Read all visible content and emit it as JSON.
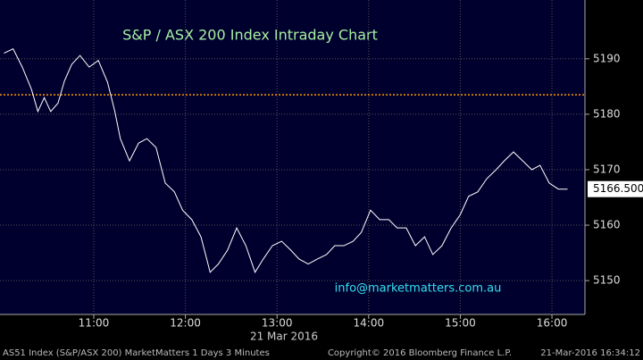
{
  "chart_data": {
    "type": "line",
    "title": "S&P / ASX 200 Index Intraday Chart",
    "annotation": "info@marketmatters.com.au",
    "x_label": "21 Mar 2016",
    "footer": {
      "left": "AS51 Index (S&P/ASX 200) MarketMatters 1 Days 3 Minutes",
      "center": "Copyright© 2016 Bloomberg Finance L.P.",
      "right": "21-Mar-2016 16:34:12"
    },
    "x": [
      10.02,
      10.12,
      10.22,
      10.32,
      10.39,
      10.46,
      10.53,
      10.61,
      10.68,
      10.76,
      10.85,
      10.95,
      11.05,
      11.15,
      11.23,
      11.29,
      11.39,
      11.49,
      11.58,
      11.68,
      11.78,
      11.88,
      11.97,
      12.07,
      12.17,
      12.27,
      12.36,
      12.46,
      12.56,
      12.66,
      12.76,
      12.85,
      12.95,
      13.05,
      13.15,
      13.24,
      13.34,
      13.44,
      13.54,
      13.63,
      13.73,
      13.83,
      13.92,
      14.02,
      14.12,
      14.22,
      14.31,
      14.41,
      14.51,
      14.61,
      14.7,
      14.8,
      14.9,
      15.0,
      15.09,
      15.19,
      15.29,
      15.39,
      15.48,
      15.58,
      15.68,
      15.78,
      15.87,
      15.97,
      16.07,
      16.17
    ],
    "series": [
      {
        "name": "AS51 Index",
        "color": "#ffffff",
        "values": [
          5191,
          5191.8,
          5188.5,
          5184.5,
          5180.5,
          5183,
          5180.5,
          5182,
          5186,
          5189,
          5190.6,
          5188.5,
          5189.7,
          5185.8,
          5180.5,
          5175.6,
          5171.6,
          5174.8,
          5175.6,
          5174,
          5167.6,
          5166,
          5162.7,
          5161,
          5157.9,
          5151.5,
          5153,
          5155.5,
          5159.5,
          5156.3,
          5151.5,
          5153.9,
          5156.3,
          5157.1,
          5155.5,
          5153.9,
          5153,
          5153.9,
          5154.7,
          5156.3,
          5156.3,
          5157.1,
          5158.7,
          5162.7,
          5161,
          5161,
          5159.5,
          5159.5,
          5156.3,
          5157.9,
          5154.7,
          5156.3,
          5159.5,
          5161.9,
          5165.2,
          5166,
          5168.4,
          5170,
          5171.6,
          5173.2,
          5171.6,
          5170,
          5170.8,
          5167.6,
          5166.5,
          5166.5
        ]
      }
    ],
    "last_value": {
      "value": 5166.5,
      "label": "5166.500"
    },
    "ref_line": {
      "value": 5183.5,
      "color": "#ff9900"
    },
    "xlim": [
      9.977,
      16.36
    ],
    "ylim": [
      5143.9,
      5200.6
    ],
    "xticks": [
      {
        "value": 11,
        "label": "11:00"
      },
      {
        "value": 12,
        "label": "12:00"
      },
      {
        "value": 13,
        "label": "13:00"
      },
      {
        "value": 14,
        "label": "14:00"
      },
      {
        "value": 15,
        "label": "15:00"
      },
      {
        "value": 16,
        "label": "16:00"
      }
    ],
    "yticks": [
      5150,
      5160,
      5170,
      5180,
      5190
    ],
    "grid": true
  }
}
